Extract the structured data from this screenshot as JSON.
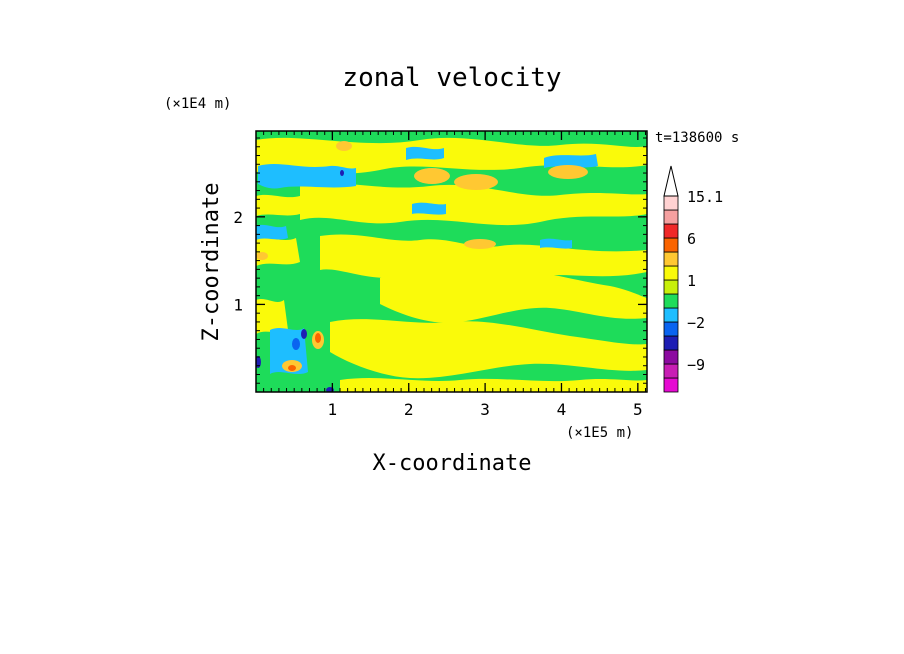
{
  "chart_data": {
    "type": "heatmap",
    "title": "zonal velocity",
    "xlabel": "X-coordinate",
    "ylabel": "Z-coordinate",
    "x_unit": "(×1E5 m)",
    "y_unit": "(×1E4 m)",
    "time_label": "t=138600 s",
    "xlim": [
      0,
      5.12
    ],
    "ylim": [
      0,
      2.98
    ],
    "x_ticks": [
      1,
      2,
      3,
      4,
      5
    ],
    "x_tick_labels": [
      "1",
      "2",
      "3",
      "4",
      "5"
    ],
    "y_ticks": [
      1,
      2
    ],
    "y_tick_labels": [
      "1",
      "2"
    ],
    "colorbar": {
      "levels": [
        -15,
        -12,
        -9,
        -6,
        -3,
        -2,
        -1,
        0,
        1,
        2,
        3,
        6,
        9,
        12,
        15.1
      ],
      "colors": [
        "#e60ad2",
        "#c81eb4",
        "#8c0aa0",
        "#1e1eb4",
        "#0a64f0",
        "#1ebeff",
        "#1edc5a",
        "#c8f00a",
        "#fafa0a",
        "#ffc832",
        "#fa6400",
        "#f02828",
        "#f5a0a0",
        "#ffd2d2"
      ],
      "extend": "max",
      "tick_labels": [
        {
          "value": -9,
          "label": "−9"
        },
        {
          "value": -2,
          "label": "−2"
        },
        {
          "value": 1,
          "label": "1"
        },
        {
          "value": 6,
          "label": "6"
        },
        {
          "value": 15.1,
          "label": "15.1"
        }
      ]
    },
    "value_range": [
      -15,
      15.1
    ]
  }
}
